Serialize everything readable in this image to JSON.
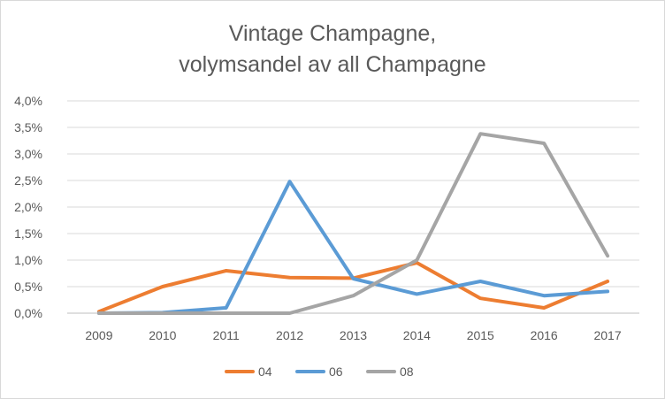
{
  "chart_data": {
    "type": "line",
    "title_lines": [
      "Vintage Champagne,",
      "volymsandel av all Champagne"
    ],
    "xlabel": "",
    "ylabel": "",
    "categories": [
      "2009",
      "2010",
      "2011",
      "2012",
      "2013",
      "2014",
      "2015",
      "2016",
      "2017"
    ],
    "ylim": [
      0,
      4.0
    ],
    "yticks": [
      0,
      0.5,
      1.0,
      1.5,
      2.0,
      2.5,
      3.0,
      3.5,
      4.0
    ],
    "ytick_labels": [
      "0,0%",
      "0,5%",
      "1,0%",
      "1,5%",
      "2,0%",
      "2,5%",
      "3,0%",
      "3,5%",
      "4,0%"
    ],
    "grid": true,
    "legend_position": "bottom",
    "series": [
      {
        "name": "04",
        "color": "#ED7D31",
        "values": [
          0.03,
          0.5,
          0.8,
          0.67,
          0.66,
          0.95,
          0.28,
          0.1,
          0.6
        ]
      },
      {
        "name": "06",
        "color": "#5B9BD5",
        "values": [
          0.0,
          0.01,
          0.1,
          2.48,
          0.65,
          0.36,
          0.6,
          0.33,
          0.41
        ]
      },
      {
        "name": "08",
        "color": "#A5A5A5",
        "values": [
          0.0,
          0.0,
          0.0,
          0.0,
          0.33,
          1.0,
          3.38,
          3.2,
          1.08
        ]
      }
    ]
  }
}
